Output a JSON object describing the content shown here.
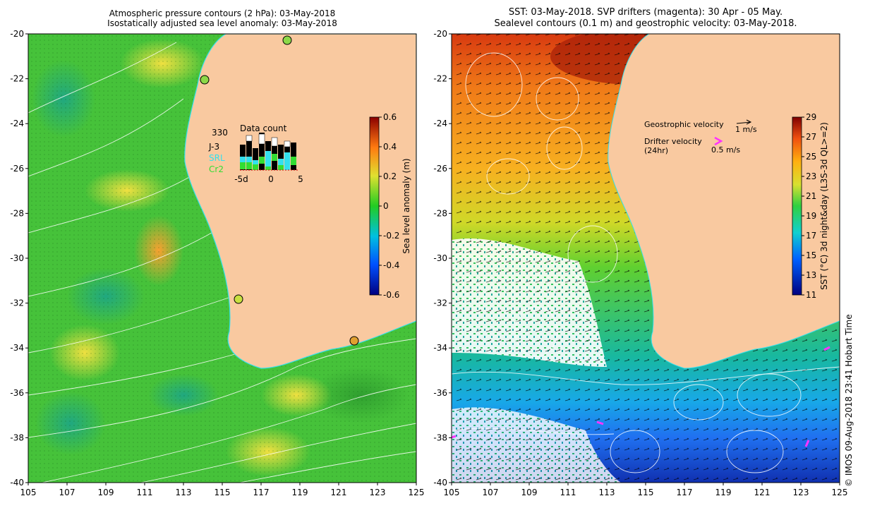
{
  "left_panel": {
    "title_line1": "Atmospheric pressure contours (2 hPa): 03-May-2018",
    "title_line2": "Isostatically adjusted sea level anomaly: 03-May-2018",
    "y_ticks": [
      "-20",
      "-22",
      "-24",
      "-26",
      "-28",
      "-30",
      "-32",
      "-34",
      "-36",
      "-38",
      "-40"
    ],
    "x_ticks": [
      "105",
      "107",
      "109",
      "111",
      "113",
      "115",
      "117",
      "119",
      "121",
      "123",
      "125"
    ],
    "colorbar": {
      "label": "Sea level anomaly (m)",
      "ticks": [
        "0.6",
        "0.4",
        "0.2",
        "0",
        "-0.2",
        "-0.4",
        "-0.6"
      ]
    },
    "data_count": {
      "title": "Data count",
      "max_label": "330",
      "legend": [
        {
          "name": "J-3",
          "color": "#000000"
        },
        {
          "name": "SRL",
          "color": "#33e0ee"
        },
        {
          "name": "Cr2",
          "color": "#33dd33"
        }
      ],
      "x_ticks": [
        "-5d",
        "0",
        "5"
      ]
    }
  },
  "right_panel": {
    "title_line1": "SST: 03-May-2018. SVP drifters (magenta): 30 Apr - 05 May.",
    "title_line2": "Sealevel contours (0.1 m) and geostrophic velocity: 03-May-2018.",
    "y_ticks": [
      "-20",
      "-22",
      "-24",
      "-26",
      "-28",
      "-30",
      "-32",
      "-34",
      "-36",
      "-38",
      "-40"
    ],
    "x_ticks": [
      "105",
      "107",
      "109",
      "111",
      "113",
      "115",
      "117",
      "119",
      "121",
      "123",
      "125"
    ],
    "colorbar": {
      "label": "SST (°C) 3d night&day (L3S-3d QL>=2)",
      "ticks": [
        "29",
        "27",
        "25",
        "23",
        "21",
        "19",
        "17",
        "15",
        "13",
        "11"
      ]
    },
    "legend": {
      "geo_label": "Geostrophic velocity",
      "geo_scale": "1 m/s",
      "drifter_label": "Drifter velocity",
      "drifter_sub": "(24hr)",
      "drifter_scale": "0.5 m/s"
    }
  },
  "credit": "© IMOS 09-Aug-2018 23:41 Hobart Time",
  "colors": {
    "land": "#f9c9a0",
    "coast": "#33e0ee",
    "drifter": "#ff33ff"
  }
}
